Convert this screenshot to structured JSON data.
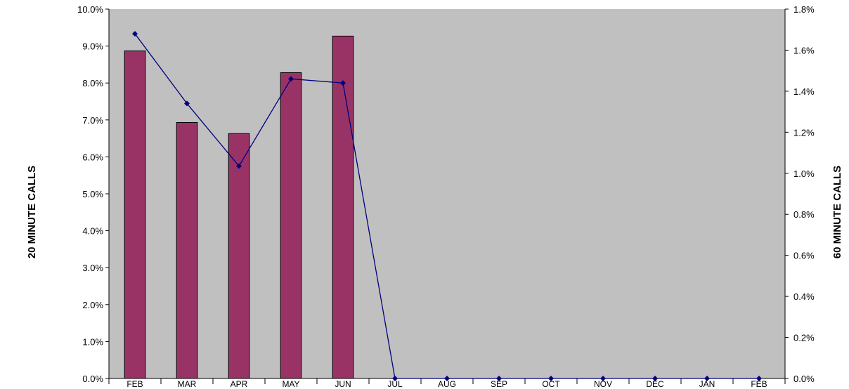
{
  "chart_data": {
    "type": "bar",
    "categories": [
      "FEB",
      "MAR",
      "APR",
      "MAY",
      "JUN",
      "JUL",
      "AUG",
      "SEP",
      "OCT",
      "NOV",
      "DEC",
      "JAN",
      "FEB"
    ],
    "series": [
      {
        "axis": "left",
        "type": "bar",
        "values": [
          8.87,
          6.93,
          6.63,
          8.28,
          9.27,
          0,
          0,
          0,
          0,
          0,
          0,
          0,
          0
        ],
        "color": "#993366"
      },
      {
        "axis": "right",
        "type": "line",
        "values": [
          1.68,
          1.34,
          1.035,
          1.46,
          1.44,
          0,
          0,
          0,
          0,
          0,
          0,
          0,
          0
        ],
        "color": "#000080"
      }
    ],
    "ylabel_left": "20 MINUTE CALLS",
    "ylabel_right": "60 MINUTE CALLS",
    "ylim_left": [
      0,
      10
    ],
    "ylim_right": [
      0,
      1.8
    ],
    "yticks_left": [
      "0.0%",
      "1.0%",
      "2.0%",
      "3.0%",
      "4.0%",
      "5.0%",
      "6.0%",
      "7.0%",
      "8.0%",
      "9.0%",
      "10.0%"
    ],
    "yticks_right": [
      "0.0%",
      "0.2%",
      "0.4%",
      "0.6%",
      "0.8%",
      "1.0%",
      "1.2%",
      "1.4%",
      "1.6%",
      "1.8%"
    ],
    "plot_background": "#c0c0c0",
    "grid": false
  }
}
